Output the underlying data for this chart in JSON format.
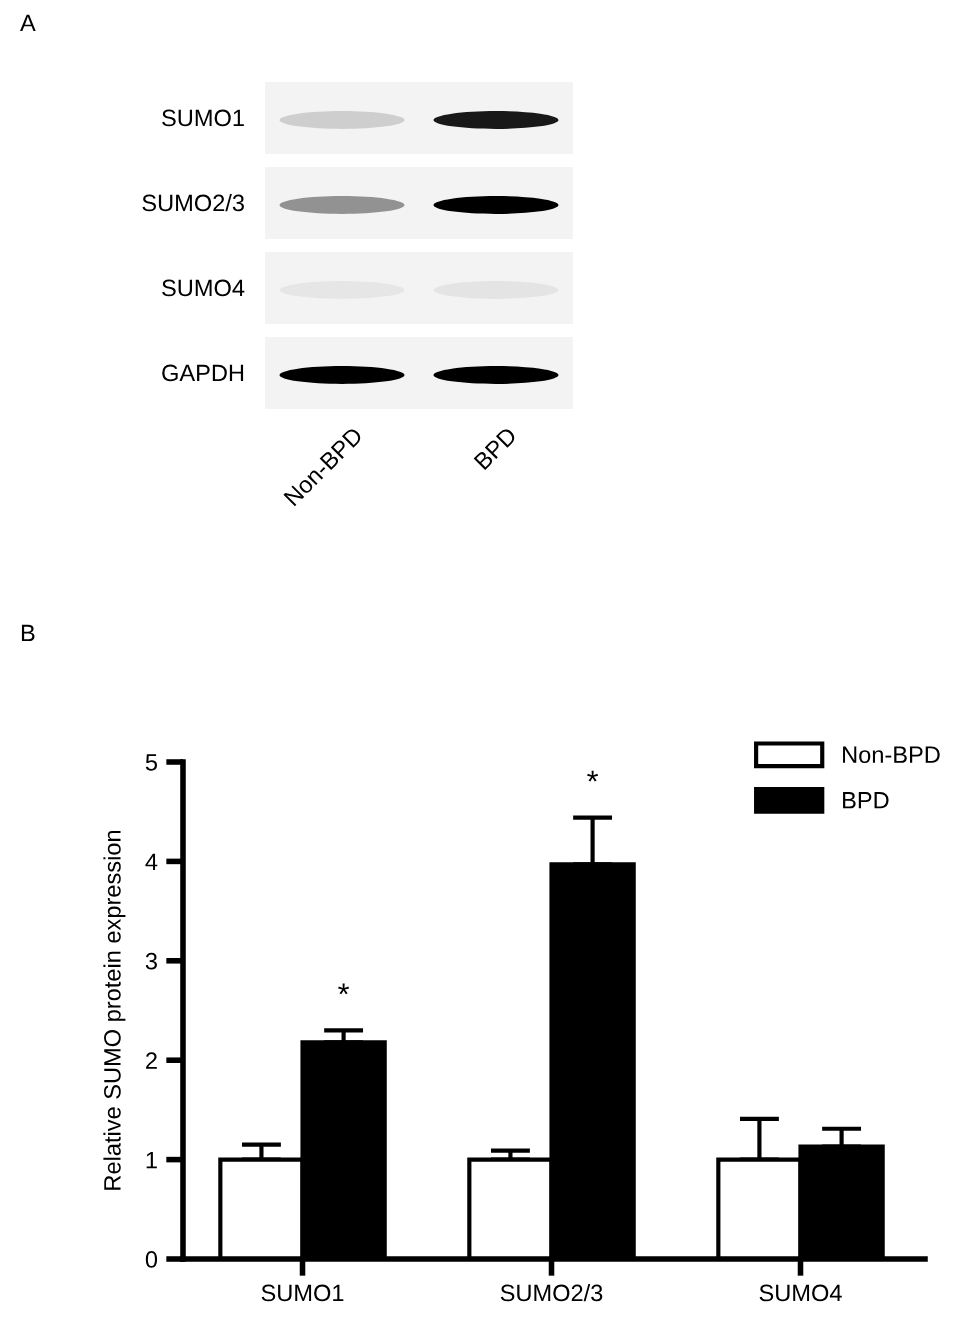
{
  "chart_data": [
    {
      "type": "other",
      "title": "A",
      "categories": [
        "Non-BPD",
        "BPD"
      ],
      "y_categories": [
        "SUMO1",
        "SUMO2/3",
        "SUMO4",
        "GAPDH"
      ]
    },
    {
      "type": "bar",
      "title": "B",
      "ylabel": "Relative SUMO protein expression",
      "categories": [
        "SUMO1",
        "SUMO2/3",
        "SUMO4"
      ],
      "series": [
        {
          "name": "Non-BPD",
          "color": "#ffffff",
          "values": [
            1.0,
            1.0,
            1.0
          ],
          "errors": [
            [
              1.0,
              1.15
            ],
            [
              1.0,
              1.09
            ],
            [
              1.0,
              1.41
            ]
          ]
        },
        {
          "name": "BPD",
          "color": "#000000",
          "values": [
            2.18,
            3.97,
            1.13
          ],
          "errors": [
            [
              2.18,
              2.3
            ],
            [
              3.97,
              4.44
            ],
            [
              1.13,
              1.31
            ]
          ]
        }
      ],
      "ylim": [
        0,
        5
      ],
      "yticks": [
        0,
        1,
        2,
        3,
        4,
        5
      ],
      "grid": false,
      "legend": "top right",
      "annotations": [
        "*",
        "*"
      ]
    }
  ]
}
